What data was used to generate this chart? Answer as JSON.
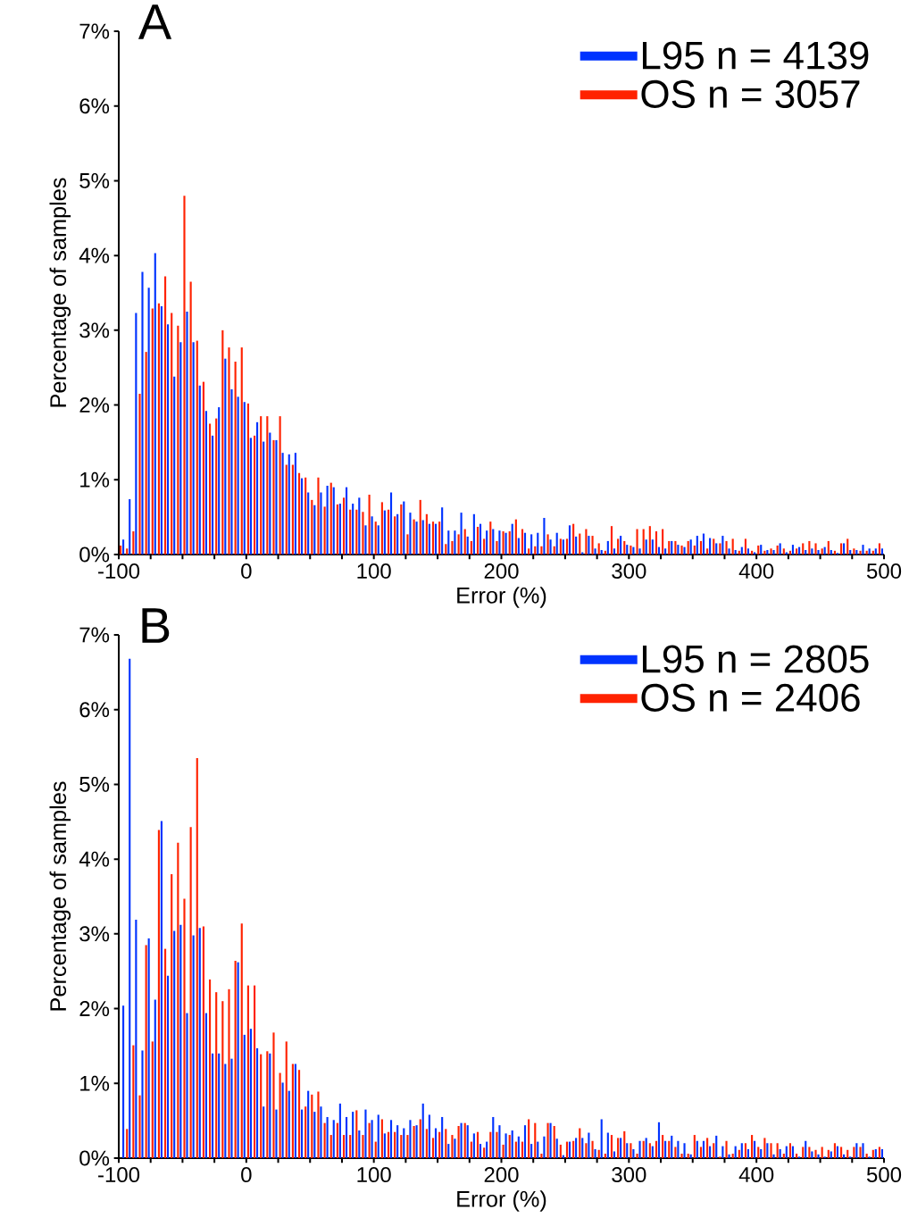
{
  "chart_data": [
    {
      "type": "histogram",
      "title": "A",
      "xlabel": "Error (%)",
      "ylabel": "Percentage of samples",
      "legend": "top right",
      "xlim": [
        -100,
        500
      ],
      "ylim": [
        0,
        7
      ],
      "xticks": [
        -100,
        {
          "value": -75,
          "label": null
        },
        {
          "value": -50,
          "label": null
        },
        {
          "value": -25,
          "label": null
        },
        0,
        {
          "value": 25,
          "label": null
        },
        {
          "value": 50,
          "label": null
        },
        {
          "value": 75,
          "label": null
        },
        100,
        {
          "value": 125,
          "label": null
        },
        {
          "value": 150,
          "label": null
        },
        {
          "value": 175,
          "label": null
        },
        200,
        {
          "value": 225,
          "label": null
        },
        {
          "value": 250,
          "label": null
        },
        {
          "value": 275,
          "label": null
        },
        300,
        {
          "value": 325,
          "label": null
        },
        {
          "value": 350,
          "label": null
        },
        {
          "value": 375,
          "label": null
        },
        400,
        {
          "value": 425,
          "label": null
        },
        {
          "value": 450,
          "label": null
        },
        {
          "value": 475,
          "label": null
        },
        500
      ],
      "yticks": [
        {
          "value": 0,
          "label": "0%"
        },
        {
          "value": 1,
          "label": "1%"
        },
        {
          "value": 2,
          "label": "2%"
        },
        {
          "value": 3,
          "label": "3%"
        },
        {
          "value": 4,
          "label": "4%"
        },
        {
          "value": 5,
          "label": "5%"
        },
        {
          "value": 6,
          "label": "6%"
        },
        {
          "value": 7,
          "label": "7%"
        }
      ],
      "bins": [
        -100,
        -95,
        -90,
        -85,
        -80,
        -75,
        -70,
        -65,
        -60,
        -55,
        -50,
        -45,
        -40,
        -35,
        -30,
        -25,
        -20,
        -15,
        -10,
        -5,
        0,
        5,
        10,
        15,
        20,
        25,
        30,
        35,
        40,
        45,
        50,
        55,
        60,
        65,
        70,
        75,
        80,
        85,
        90,
        95,
        100,
        105,
        110,
        115,
        120,
        125,
        130,
        135,
        140,
        145,
        150,
        155,
        160,
        165,
        170,
        175,
        180,
        185,
        190,
        195,
        200,
        205,
        210,
        215,
        220,
        225,
        230,
        235,
        240,
        245,
        250,
        255,
        260,
        265,
        270,
        275,
        280,
        285,
        290,
        295,
        300,
        305,
        310,
        315,
        320,
        325,
        330,
        335,
        340,
        345,
        350,
        355,
        360,
        365,
        370,
        375,
        380,
        385,
        390,
        395,
        400,
        405,
        410,
        415,
        420,
        425,
        430,
        435,
        440,
        445,
        450,
        455,
        460,
        465,
        470,
        475,
        480,
        485,
        490,
        495,
        500
      ],
      "series": [
        {
          "name": "L95 n = 4139",
          "color": "#0033ff",
          "values": [
            0.2,
            0.74,
            3.23,
            3.78,
            3.57,
            4.03,
            3.32,
            3.08,
            2.38,
            2.84,
            3.25,
            2.84,
            2.26,
            1.92,
            1.59,
            1.97,
            2.62,
            2.21,
            2.11,
            2.04,
            1.56,
            1.77,
            1.51,
            1.63,
            1.53,
            1.36,
            1.34,
            1.36,
            1.02,
            0.83,
            0.66,
            0.83,
            0.92,
            0.9,
            0.68,
            0.9,
            0.68,
            0.76,
            0.39,
            0.51,
            0.39,
            0.59,
            0.83,
            0.54,
            0.71,
            0.56,
            0.44,
            0.46,
            0.41,
            0.41,
            0.63,
            0.32,
            0.32,
            0.56,
            0.24,
            0.54,
            0.41,
            0.32,
            0.34,
            0.32,
            0.29,
            0.41,
            0.22,
            0.29,
            0.27,
            0.29,
            0.49,
            0.2,
            0.29,
            0.2,
            0.39,
            0.24,
            0.03,
            0.25,
            0.08,
            0.06,
            0.18,
            0.08,
            0.25,
            0.13,
            0.1,
            0.08,
            0.2,
            0.2,
            0.1,
            0.08,
            0.18,
            0.13,
            0.1,
            0.2,
            0.25,
            0.28,
            0.22,
            0.15,
            0.25,
            0.08,
            0.06,
            0.1,
            0.08,
            0.03,
            0.13,
            0.06,
            0.06,
            0.15,
            0.03,
            0.13,
            0.1,
            0.06,
            0.08,
            0.06,
            0.1,
            0.06,
            0.02,
            0.15,
            0.06,
            0.06,
            0.13,
            0.08,
            0.08,
            0.08
          ]
        },
        {
          "name": "OS n = 3057",
          "color": "#ff2200",
          "values": [
            0.12,
            0.08,
            0.31,
            2.15,
            2.71,
            3.29,
            3.36,
            3.72,
            3.23,
            3.06,
            4.8,
            3.65,
            2.86,
            2.31,
            1.75,
            1.82,
            3.0,
            2.77,
            2.58,
            2.77,
            2.02,
            1.59,
            1.85,
            1.85,
            1.53,
            1.85,
            1.2,
            1.2,
            1.09,
            1.03,
            0.73,
            1.03,
            0.64,
            0.96,
            0.67,
            0.76,
            0.6,
            0.6,
            0.57,
            0.8,
            0.44,
            0.7,
            0.6,
            0.51,
            0.67,
            0.27,
            0.47,
            0.73,
            0.54,
            0.44,
            0.44,
            0.14,
            0.18,
            0.27,
            0.34,
            0.18,
            0.37,
            0.21,
            0.44,
            0.18,
            0.31,
            0.31,
            0.47,
            0.34,
            0.08,
            0.11,
            0.11,
            0.27,
            0.11,
            0.21,
            0.21,
            0.41,
            0.28,
            0.34,
            0.25,
            0.15,
            0.05,
            0.38,
            0.21,
            0.18,
            0.12,
            0.34,
            0.34,
            0.38,
            0.31,
            0.34,
            0.18,
            0.18,
            0.12,
            0.18,
            0.12,
            0.18,
            0.08,
            0.21,
            0.15,
            0.18,
            0.21,
            0.05,
            0.21,
            0.05,
            0.12,
            0.05,
            0.08,
            0.12,
            0.08,
            0.05,
            0.08,
            0.15,
            0.18,
            0.15,
            0.08,
            0.18,
            0.05,
            0.15,
            0.21,
            0.08,
            0.05,
            0.05,
            0.05,
            0.15
          ]
        }
      ]
    },
    {
      "type": "histogram",
      "title": "B",
      "xlabel": "Error (%)",
      "ylabel": "Percentage of samples",
      "legend": "top right",
      "xlim": [
        -100,
        500
      ],
      "ylim": [
        0,
        7
      ],
      "xticks": [
        -100,
        {
          "value": -75,
          "label": null
        },
        {
          "value": -50,
          "label": null
        },
        {
          "value": -25,
          "label": null
        },
        0,
        {
          "value": 25,
          "label": null
        },
        {
          "value": 50,
          "label": null
        },
        {
          "value": 75,
          "label": null
        },
        100,
        {
          "value": 125,
          "label": null
        },
        {
          "value": 150,
          "label": null
        },
        {
          "value": 175,
          "label": null
        },
        200,
        {
          "value": 225,
          "label": null
        },
        {
          "value": 250,
          "label": null
        },
        {
          "value": 275,
          "label": null
        },
        300,
        {
          "value": 325,
          "label": null
        },
        {
          "value": 350,
          "label": null
        },
        {
          "value": 375,
          "label": null
        },
        400,
        {
          "value": 425,
          "label": null
        },
        {
          "value": 450,
          "label": null
        },
        {
          "value": 475,
          "label": null
        },
        500
      ],
      "yticks": [
        {
          "value": 0,
          "label": "0%"
        },
        {
          "value": 1,
          "label": "1%"
        },
        {
          "value": 2,
          "label": "2%"
        },
        {
          "value": 3,
          "label": "3%"
        },
        {
          "value": 4,
          "label": "4%"
        },
        {
          "value": 5,
          "label": "5%"
        },
        {
          "value": 6,
          "label": "6%"
        },
        {
          "value": 7,
          "label": "7%"
        }
      ],
      "bins": [
        -100,
        -95,
        -90,
        -85,
        -80,
        -75,
        -70,
        -65,
        -60,
        -55,
        -50,
        -45,
        -40,
        -35,
        -30,
        -25,
        -20,
        -15,
        -10,
        -5,
        0,
        5,
        10,
        15,
        20,
        25,
        30,
        35,
        40,
        45,
        50,
        55,
        60,
        65,
        70,
        75,
        80,
        85,
        90,
        95,
        100,
        105,
        110,
        115,
        120,
        125,
        130,
        135,
        140,
        145,
        150,
        155,
        160,
        165,
        170,
        175,
        180,
        185,
        190,
        195,
        200,
        205,
        210,
        215,
        220,
        225,
        230,
        235,
        240,
        245,
        250,
        255,
        260,
        265,
        270,
        275,
        280,
        285,
        290,
        295,
        300,
        305,
        310,
        315,
        320,
        325,
        330,
        335,
        340,
        345,
        350,
        355,
        360,
        365,
        370,
        375,
        380,
        385,
        390,
        395,
        400,
        405,
        410,
        415,
        420,
        425,
        430,
        435,
        440,
        445,
        450,
        455,
        460,
        465,
        470,
        475,
        480,
        485,
        490,
        495,
        500
      ],
      "series": [
        {
          "name": "L95 n = 2805",
          "color": "#0033ff",
          "values": [
            2.04,
            6.68,
            3.19,
            1.44,
            2.94,
            2.12,
            4.51,
            2.44,
            3.04,
            3.12,
            1.94,
            2.98,
            3.08,
            1.94,
            1.4,
            1.4,
            1.26,
            1.33,
            2.62,
            1.65,
            1.73,
            1.47,
            0.69,
            1.4,
            0.65,
            1.01,
            0.9,
            1.26,
            0.65,
            0.9,
            0.62,
            0.69,
            0.55,
            0.51,
            0.73,
            0.55,
            0.62,
            0.37,
            0.65,
            0.51,
            0.58,
            0.33,
            0.51,
            0.44,
            0.4,
            0.51,
            0.44,
            0.73,
            0.58,
            0.4,
            0.55,
            0.19,
            0.26,
            0.47,
            0.44,
            0.33,
            0.19,
            0.22,
            0.55,
            0.44,
            0.33,
            0.37,
            0.29,
            0.44,
            0.19,
            0.22,
            0.29,
            0.47,
            0.26,
            0.04,
            0.22,
            0.27,
            0.27,
            0.34,
            0.12,
            0.52,
            0.34,
            0.09,
            0.27,
            0.2,
            0.12,
            0.23,
            0.27,
            0.16,
            0.48,
            0.23,
            0.3,
            0.23,
            0.2,
            0.05,
            0.23,
            0.23,
            0.16,
            0.3,
            0.16,
            0.05,
            0.16,
            0.2,
            0.12,
            0.23,
            0.12,
            0.2,
            0.05,
            0.12,
            0.16,
            0.16,
            0.02,
            0.23,
            0.09,
            0.05,
            0.02,
            0.09,
            0.16,
            0.05,
            0.02,
            0.2,
            0.2,
            0.02,
            0.12,
            0.12
          ]
        },
        {
          "name": "OS n = 2406",
          "color": "#ff2200",
          "values": [
            0,
            0.39,
            1.51,
            0.84,
            2.85,
            1.56,
            4.39,
            2.8,
            3.8,
            4.22,
            3.47,
            4.43,
            5.35,
            3.1,
            2.39,
            2.22,
            2.1,
            2.26,
            2.64,
            3.14,
            2.31,
            2.31,
            1.39,
            1.43,
            1.68,
            1.14,
            1.56,
            1.26,
            1.18,
            0.69,
            0.85,
            0.89,
            0.47,
            0.31,
            0.47,
            0.31,
            0.31,
            0.64,
            0.31,
            0.47,
            0.22,
            0.52,
            0.35,
            0.35,
            0.31,
            0.31,
            0.43,
            0.52,
            0.39,
            0.27,
            0.35,
            0.39,
            0.31,
            0.43,
            0.47,
            0.22,
            0.35,
            0.14,
            0.35,
            0.35,
            0.18,
            0.31,
            0.22,
            0.22,
            0.52,
            0.47,
            0.06,
            0.47,
            0.43,
            0.18,
            0.22,
            0.23,
            0.4,
            0.2,
            0.23,
            0.11,
            0.06,
            0.31,
            0.27,
            0.36,
            0.2,
            0.06,
            0.23,
            0.2,
            0.23,
            0.31,
            0.23,
            0.15,
            0.06,
            0.06,
            0.31,
            0.15,
            0.27,
            0.2,
            0.02,
            0.23,
            0.06,
            0.11,
            0.2,
            0.31,
            0.15,
            0.27,
            0.2,
            0.2,
            0.06,
            0.2,
            0.06,
            0.15,
            0.15,
            0.11,
            0.15,
            0.11,
            0.2,
            0.15,
            0.11,
            0.15,
            0.15,
            0.06,
            0.11,
            0.15
          ]
        }
      ]
    }
  ]
}
